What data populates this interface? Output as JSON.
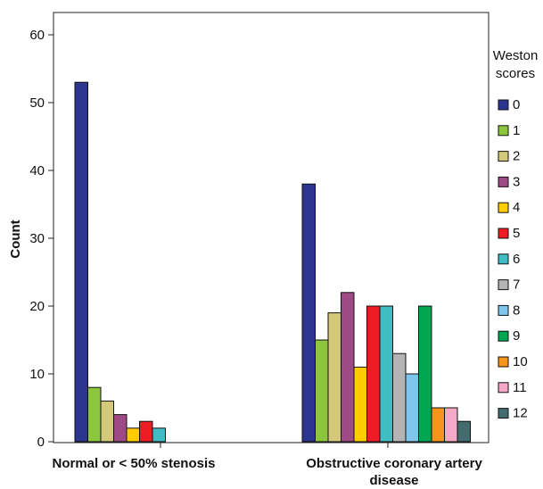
{
  "chart_data": {
    "type": "bar",
    "ylabel": "Count",
    "ylim": [
      0,
      63
    ],
    "yticks": [
      0,
      10,
      20,
      30,
      40,
      50,
      60
    ],
    "categories": [
      {
        "lines": [
          "Normal or < 50% stenosis"
        ]
      },
      {
        "lines": [
          "Obstructive coronary artery",
          "disease"
        ]
      }
    ],
    "legend_title": [
      "Weston",
      "scores"
    ],
    "legend_position": "right",
    "grid": false,
    "series": [
      {
        "name": "0",
        "color": "#2b3590",
        "values": [
          53,
          38
        ]
      },
      {
        "name": "1",
        "color": "#8cc63f",
        "values": [
          8,
          15
        ]
      },
      {
        "name": "2",
        "color": "#d4c97a",
        "values": [
          6,
          19
        ]
      },
      {
        "name": "3",
        "color": "#9e4a86",
        "values": [
          4,
          22
        ]
      },
      {
        "name": "4",
        "color": "#ffcc00",
        "values": [
          2,
          11
        ]
      },
      {
        "name": "5",
        "color": "#ee1c25",
        "values": [
          3,
          20
        ]
      },
      {
        "name": "6",
        "color": "#3fbcc4",
        "values": [
          2,
          20
        ]
      },
      {
        "name": "7",
        "color": "#b4b4b4",
        "values": [
          0,
          13
        ]
      },
      {
        "name": "8",
        "color": "#7fc6ec",
        "values": [
          0,
          10
        ]
      },
      {
        "name": "9",
        "color": "#00a651",
        "values": [
          0,
          20
        ]
      },
      {
        "name": "10",
        "color": "#f7941d",
        "values": [
          0,
          5
        ]
      },
      {
        "name": "11",
        "color": "#f5a9c8",
        "values": [
          0,
          5
        ]
      },
      {
        "name": "12",
        "color": "#446b6e",
        "values": [
          0,
          3
        ]
      }
    ]
  }
}
